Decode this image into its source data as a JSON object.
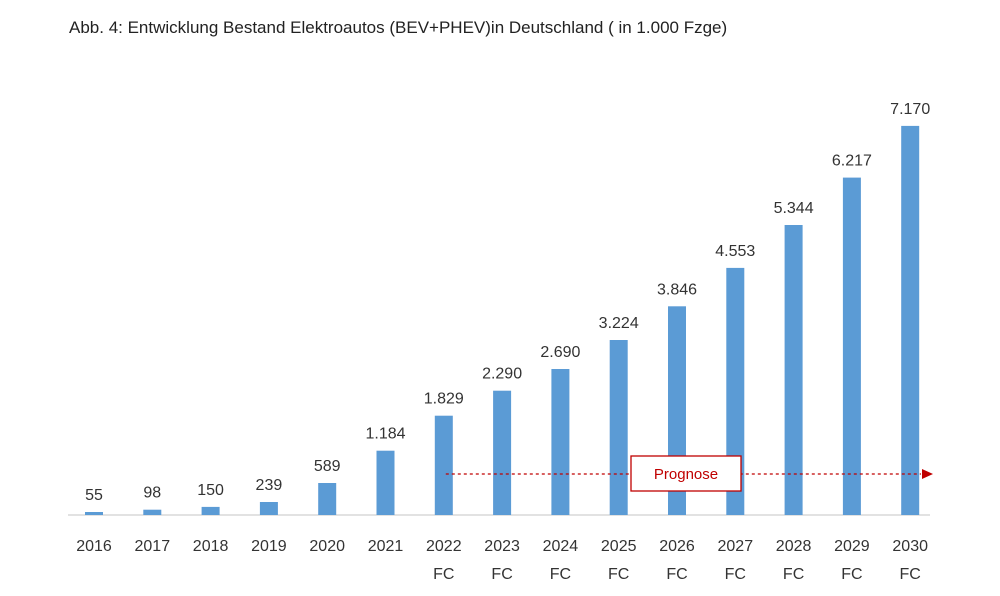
{
  "title": "Abb. 4: Entwicklung Bestand Elektroautos (BEV+PHEV)in Deutschland ( in 1.000 Fzge)",
  "chart_data": {
    "type": "bar",
    "title": "Abb. 4: Entwicklung Bestand Elektroautos (BEV+PHEV)in Deutschland ( in 1.000 Fzge)",
    "xlabel": "",
    "ylabel": "",
    "ylim": [
      0,
      7500
    ],
    "grid": false,
    "legend": "none",
    "bar_color": "#5b9bd5",
    "categories": [
      {
        "year": "2016",
        "suffix": ""
      },
      {
        "year": "2017",
        "suffix": ""
      },
      {
        "year": "2018",
        "suffix": ""
      },
      {
        "year": "2019",
        "suffix": ""
      },
      {
        "year": "2020",
        "suffix": ""
      },
      {
        "year": "2021",
        "suffix": ""
      },
      {
        "year": "2022",
        "suffix": "FC"
      },
      {
        "year": "2023",
        "suffix": "FC"
      },
      {
        "year": "2024",
        "suffix": "FC"
      },
      {
        "year": "2025",
        "suffix": "FC"
      },
      {
        "year": "2026",
        "suffix": "FC"
      },
      {
        "year": "2027",
        "suffix": "FC"
      },
      {
        "year": "2028",
        "suffix": "FC"
      },
      {
        "year": "2029",
        "suffix": "FC"
      },
      {
        "year": "2030",
        "suffix": "FC"
      }
    ],
    "values": [
      55,
      98,
      150,
      239,
      589,
      1184,
      1829,
      2290,
      2690,
      3224,
      3846,
      4553,
      5344,
      6217,
      7170
    ],
    "value_labels": [
      "55",
      "98",
      "150",
      "239",
      "589",
      "1.184",
      "1.829",
      "2.290",
      "2.690",
      "3.224",
      "3.846",
      "4.553",
      "5.344",
      "6.217",
      "7.170"
    ],
    "annotation": {
      "text": "Prognose",
      "color": "#c00000",
      "start_category": "2022"
    }
  }
}
